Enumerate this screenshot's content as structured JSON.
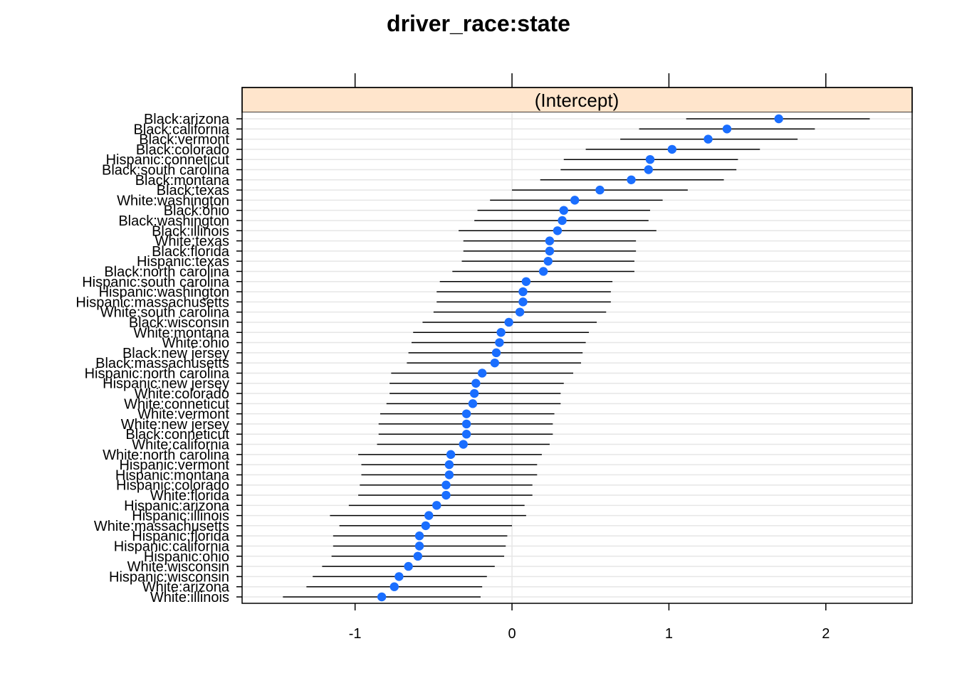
{
  "chart_data": {
    "type": "dotplot",
    "title": "driver_race:state",
    "panel_label": "(Intercept)",
    "xlim": [
      -1.72,
      2.55
    ],
    "x_ticks": [
      -1,
      0,
      1,
      2
    ],
    "x_tick_labels": [
      "-1",
      "0",
      "1",
      "2"
    ],
    "grid": true,
    "colors": {
      "point": "#1a6eff",
      "strip": "#ffe5cc",
      "grid": "#e6e6e6"
    },
    "categories": [
      "Black:arizona",
      "Black:california",
      "Black:vermont",
      "Black:colorado",
      "Hispanic:conneticut",
      "Black:south carolina",
      "Black:montana",
      "Black:texas",
      "White:washington",
      "Black:ohio",
      "Black:washington",
      "Black:illinois",
      "White:texas",
      "Black:florida",
      "Hispanic:texas",
      "Black:north carolina",
      "Hispanic:south carolina",
      "Hispanic:washington",
      "Hispanic:massachusetts",
      "White:south carolina",
      "Black:wisconsin",
      "White:montana",
      "White:ohio",
      "Black:new jersey",
      "Black:massachusetts",
      "Hispanic:north carolina",
      "Hispanic:new jersey",
      "White:colorado",
      "White:conneticut",
      "White:vermont",
      "White:new jersey",
      "Black:conneticut",
      "White:california",
      "White:north carolina",
      "Hispanic:vermont",
      "Hispanic:montana",
      "Hispanic:colorado",
      "White:florida",
      "Hispanic:arizona",
      "Hispanic:illinois",
      "White:massachusetts",
      "Hispanic:florida",
      "Hispanic:california",
      "Hispanic:ohio",
      "White:wisconsin",
      "Hispanic:wisconsin",
      "White:arizona",
      "White:illinois"
    ],
    "values": [
      1.7,
      1.37,
      1.25,
      1.02,
      0.88,
      0.87,
      0.76,
      0.56,
      0.4,
      0.33,
      0.32,
      0.29,
      0.24,
      0.24,
      0.23,
      0.2,
      0.09,
      0.07,
      0.07,
      0.05,
      -0.02,
      -0.07,
      -0.08,
      -0.1,
      -0.11,
      -0.19,
      -0.23,
      -0.24,
      -0.25,
      -0.29,
      -0.29,
      -0.29,
      -0.31,
      -0.39,
      -0.4,
      -0.4,
      -0.42,
      -0.42,
      -0.48,
      -0.53,
      -0.55,
      -0.59,
      -0.59,
      -0.6,
      -0.66,
      -0.72,
      -0.75,
      -0.83
    ],
    "lower": [
      1.11,
      0.81,
      0.69,
      0.47,
      0.33,
      0.31,
      0.18,
      0.0,
      -0.14,
      -0.22,
      -0.24,
      -0.34,
      -0.31,
      -0.31,
      -0.32,
      -0.38,
      -0.46,
      -0.48,
      -0.48,
      -0.5,
      -0.57,
      -0.63,
      -0.64,
      -0.66,
      -0.67,
      -0.77,
      -0.78,
      -0.78,
      -0.8,
      -0.84,
      -0.85,
      -0.85,
      -0.86,
      -0.98,
      -0.96,
      -0.96,
      -0.97,
      -0.98,
      -1.04,
      -1.16,
      -1.1,
      -1.14,
      -1.14,
      -1.15,
      -1.21,
      -1.27,
      -1.31,
      -1.46
    ],
    "upper": [
      2.28,
      1.93,
      1.82,
      1.58,
      1.44,
      1.43,
      1.35,
      1.12,
      0.96,
      0.88,
      0.87,
      0.92,
      0.79,
      0.79,
      0.78,
      0.78,
      0.64,
      0.63,
      0.63,
      0.6,
      0.54,
      0.49,
      0.47,
      0.45,
      0.44,
      0.39,
      0.33,
      0.31,
      0.31,
      0.27,
      0.26,
      0.26,
      0.24,
      0.19,
      0.16,
      0.16,
      0.13,
      0.13,
      0.08,
      0.09,
      0.0,
      -0.03,
      -0.04,
      -0.05,
      -0.11,
      -0.16,
      -0.19,
      -0.2
    ]
  }
}
